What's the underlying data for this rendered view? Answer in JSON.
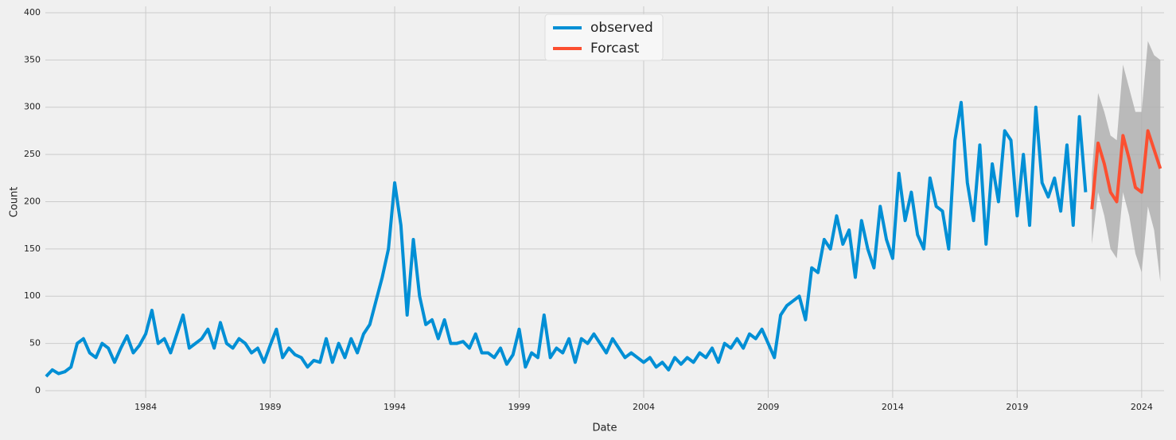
{
  "chart_data": {
    "type": "line",
    "xlabel": "Date",
    "ylabel": "Count",
    "xlim": [
      1979.97,
      2024.9
    ],
    "ylim": [
      -7.6,
      406.7
    ],
    "xticks": [
      1984,
      1989,
      1994,
      1999,
      2004,
      2009,
      2014,
      2019,
      2024
    ],
    "yticks": [
      0,
      50,
      100,
      150,
      200,
      250,
      300,
      350,
      400
    ],
    "grid": true,
    "legend": "top-center",
    "series": [
      {
        "name": "observed",
        "color": "#008fd5",
        "x": [
          1980.0,
          1980.25,
          1980.5,
          1980.75,
          1981.0,
          1981.25,
          1981.5,
          1981.75,
          1982.0,
          1982.25,
          1982.5,
          1982.75,
          1983.0,
          1983.25,
          1983.5,
          1983.75,
          1984.0,
          1984.25,
          1984.5,
          1984.75,
          1985.0,
          1985.25,
          1985.5,
          1985.75,
          1986.0,
          1986.25,
          1986.5,
          1986.75,
          1987.0,
          1987.25,
          1987.5,
          1987.75,
          1988.0,
          1988.25,
          1988.5,
          1988.75,
          1989.0,
          1989.25,
          1989.5,
          1989.75,
          1990.0,
          1990.25,
          1990.5,
          1990.75,
          1991.0,
          1991.25,
          1991.5,
          1991.75,
          1992.0,
          1992.25,
          1992.5,
          1992.75,
          1993.0,
          1993.25,
          1993.5,
          1993.75,
          1994.0,
          1994.25,
          1994.5,
          1994.75,
          1995.0,
          1995.25,
          1995.5,
          1995.75,
          1996.0,
          1996.25,
          1996.5,
          1996.75,
          1997.0,
          1997.25,
          1997.5,
          1997.75,
          1998.0,
          1998.25,
          1998.5,
          1998.75,
          1999.0,
          1999.25,
          1999.5,
          1999.75,
          2000.0,
          2000.25,
          2000.5,
          2000.75,
          2001.0,
          2001.25,
          2001.5,
          2001.75,
          2002.0,
          2002.25,
          2002.5,
          2002.75,
          2003.0,
          2003.25,
          2003.5,
          2003.75,
          2004.0,
          2004.25,
          2004.5,
          2004.75,
          2005.0,
          2005.25,
          2005.5,
          2005.75,
          2006.0,
          2006.25,
          2006.5,
          2006.75,
          2007.0,
          2007.25,
          2007.5,
          2007.75,
          2008.0,
          2008.25,
          2008.5,
          2008.75,
          2009.0,
          2009.25,
          2009.5,
          2009.75,
          2010.0,
          2010.25,
          2010.5,
          2010.75,
          2011.0,
          2011.25,
          2011.5,
          2011.75,
          2012.0,
          2012.25,
          2012.5,
          2012.75,
          2013.0,
          2013.25,
          2013.5,
          2013.75,
          2014.0,
          2014.25,
          2014.5,
          2014.75,
          2015.0,
          2015.25,
          2015.5,
          2015.75,
          2016.0,
          2016.25,
          2016.5,
          2016.75,
          2017.0,
          2017.25,
          2017.5,
          2017.75,
          2018.0,
          2018.25,
          2018.5,
          2018.75,
          2019.0,
          2019.25,
          2019.5,
          2019.75,
          2020.0,
          2020.25,
          2020.5,
          2020.75,
          2021.0,
          2021.25,
          2021.5,
          2021.75
        ],
        "values": [
          15,
          22,
          18,
          20,
          25,
          50,
          55,
          40,
          35,
          50,
          45,
          30,
          45,
          58,
          40,
          48,
          60,
          85,
          50,
          55,
          40,
          60,
          80,
          45,
          50,
          55,
          65,
          45,
          72,
          50,
          45,
          55,
          50,
          40,
          45,
          30,
          48,
          65,
          35,
          45,
          38,
          35,
          25,
          32,
          30,
          55,
          30,
          50,
          35,
          55,
          40,
          60,
          70,
          95,
          120,
          150,
          220,
          175,
          80,
          160,
          100,
          70,
          75,
          55,
          75,
          50,
          50,
          52,
          45,
          60,
          40,
          40,
          35,
          45,
          28,
          38,
          65,
          25,
          40,
          35,
          80,
          35,
          45,
          40,
          55,
          30,
          55,
          50,
          60,
          50,
          40,
          55,
          45,
          35,
          40,
          35,
          30,
          35,
          25,
          30,
          22,
          35,
          28,
          35,
          30,
          40,
          35,
          45,
          30,
          50,
          45,
          55,
          45,
          60,
          55,
          65,
          50,
          35,
          80,
          90,
          95,
          100,
          75,
          130,
          125,
          160,
          150,
          185,
          155,
          170,
          120,
          180,
          150,
          130,
          195,
          160,
          140,
          230,
          180,
          210,
          165,
          150,
          225,
          195,
          190,
          150,
          265,
          305,
          220,
          180,
          260,
          155,
          240,
          200,
          275,
          265,
          185,
          250,
          175,
          300,
          220,
          205,
          225,
          190,
          260,
          175,
          290,
          210
        ]
      },
      {
        "name": "Forcast",
        "color": "#fc4f30",
        "x": [
          2022.0,
          2022.25,
          2022.5,
          2022.75,
          2023.0,
          2023.25,
          2023.5,
          2023.75,
          2024.0,
          2024.25,
          2024.5,
          2024.75
        ],
        "values": [
          192,
          262,
          240,
          210,
          200,
          270,
          245,
          215,
          210,
          275,
          255,
          235
        ],
        "lower": [
          155,
          210,
          185,
          150,
          140,
          210,
          185,
          145,
          125,
          195,
          170,
          115
        ],
        "upper": [
          230,
          315,
          295,
          270,
          265,
          345,
          320,
          295,
          295,
          370,
          355,
          350
        ],
        "band_color": "#b0b0b0"
      }
    ]
  }
}
